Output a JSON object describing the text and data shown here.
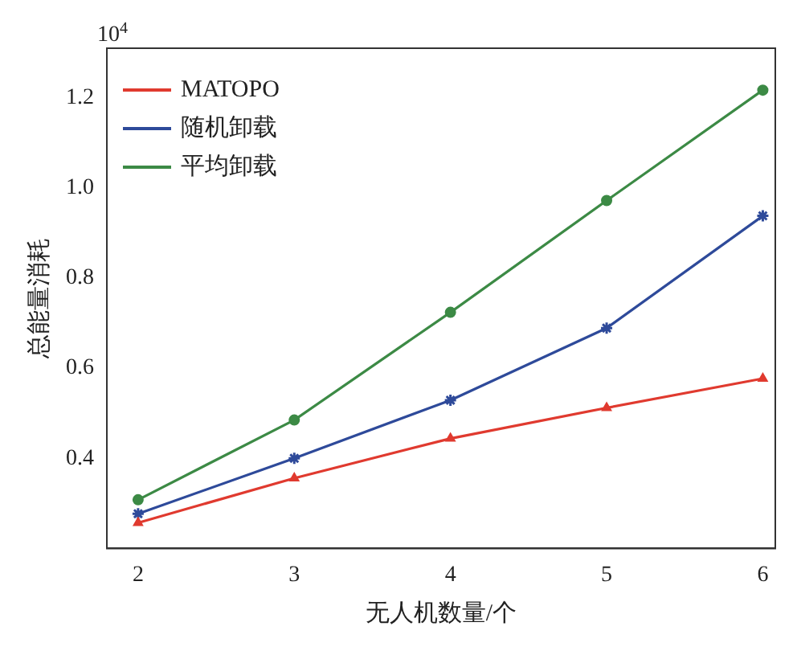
{
  "chart_data": {
    "type": "line",
    "xlabel": "无人机数量/个",
    "ylabel": "总能量消耗",
    "annotations": [
      "10$^{4}$"
    ],
    "x": [
      2,
      3,
      4,
      5,
      6
    ],
    "series": [
      {
        "name": "MATOPO",
        "color": "#e03a2f",
        "marker": "triangle",
        "values": [
          0.257,
          0.356,
          0.444,
          0.512,
          0.577
        ]
      },
      {
        "name": "随机卸载",
        "color": "#2e4a9a",
        "marker": "cross",
        "values": [
          0.277,
          0.4,
          0.529,
          0.689,
          0.938
        ]
      },
      {
        "name": "平均卸载",
        "color": "#3c8a45",
        "marker": "circle",
        "values": [
          0.308,
          0.485,
          0.724,
          0.972,
          1.217
        ]
      }
    ],
    "xlim": [
      1.8,
      6.08
    ],
    "xticks": [
      2,
      3,
      4,
      5,
      6
    ],
    "ylim": [
      0.2,
      1.31
    ],
    "yticks": [
      0.4,
      0.6,
      0.8,
      {
        "value": 1.0,
        "label": "1.0"
      },
      1.2
    ],
    "grid": false,
    "legend": "top left",
    "line_style": "solid"
  }
}
